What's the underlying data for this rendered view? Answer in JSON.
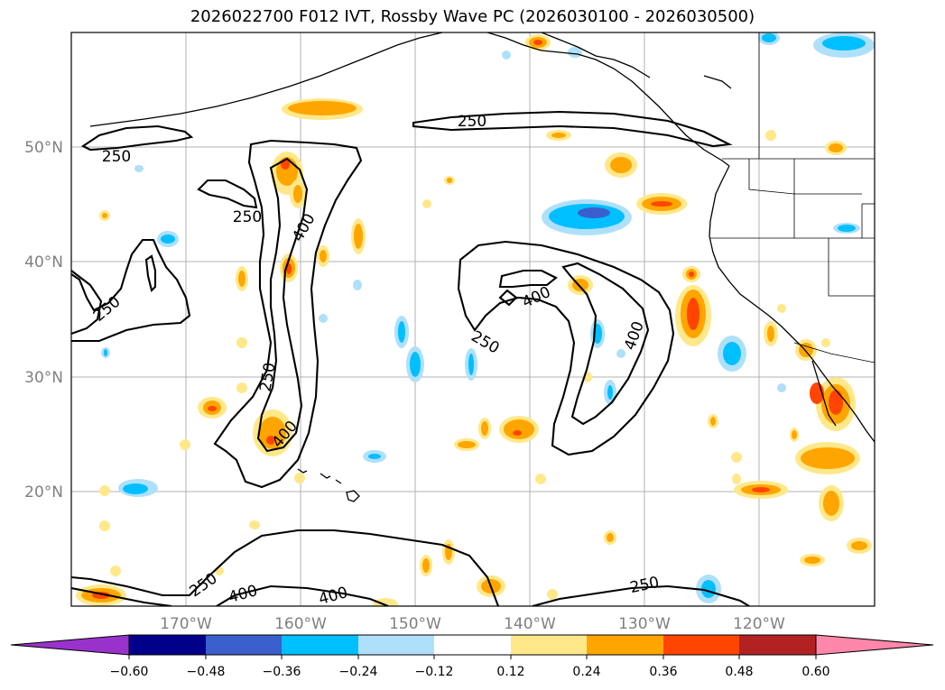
{
  "title": "2026022700 F012 IVT, Rossby Wave PC (2026030100 - 2026030500)",
  "lat_labels": [
    "50°N",
    "40°N",
    "30°N",
    "20°N"
  ],
  "lon_labels": [
    "170°W",
    "160°W",
    "150°W",
    "140°W",
    "130°W",
    "120°W"
  ],
  "contour_labels": [
    "250",
    "250",
    "250",
    "250",
    "400",
    "250",
    "400",
    "400",
    "250",
    "400",
    "250",
    "400",
    "400",
    "250"
  ],
  "colorbar": {
    "tick_labels": [
      "−0.60",
      "−0.48",
      "−0.36",
      "−0.24",
      "−0.12",
      "0.12",
      "0.24",
      "0.36",
      "0.48",
      "0.60"
    ],
    "colors": [
      "#9932cc",
      "#00008b",
      "#3a5fcd",
      "#00bfff",
      "#afe0fa",
      "#ffffff",
      "#ffe88a",
      "#ffa500",
      "#ff4500",
      "#b22222",
      "#ff88aa"
    ]
  },
  "colors": {
    "contour": "#000000",
    "grid": "#b0b0b0",
    "pos_light": "#ffe88a",
    "pos_mid": "#ffa500",
    "pos_high": "#ff4500",
    "neg_light": "#afe0fa",
    "neg_mid": "#00bfff",
    "neg_high": "#3a5fcd"
  }
}
